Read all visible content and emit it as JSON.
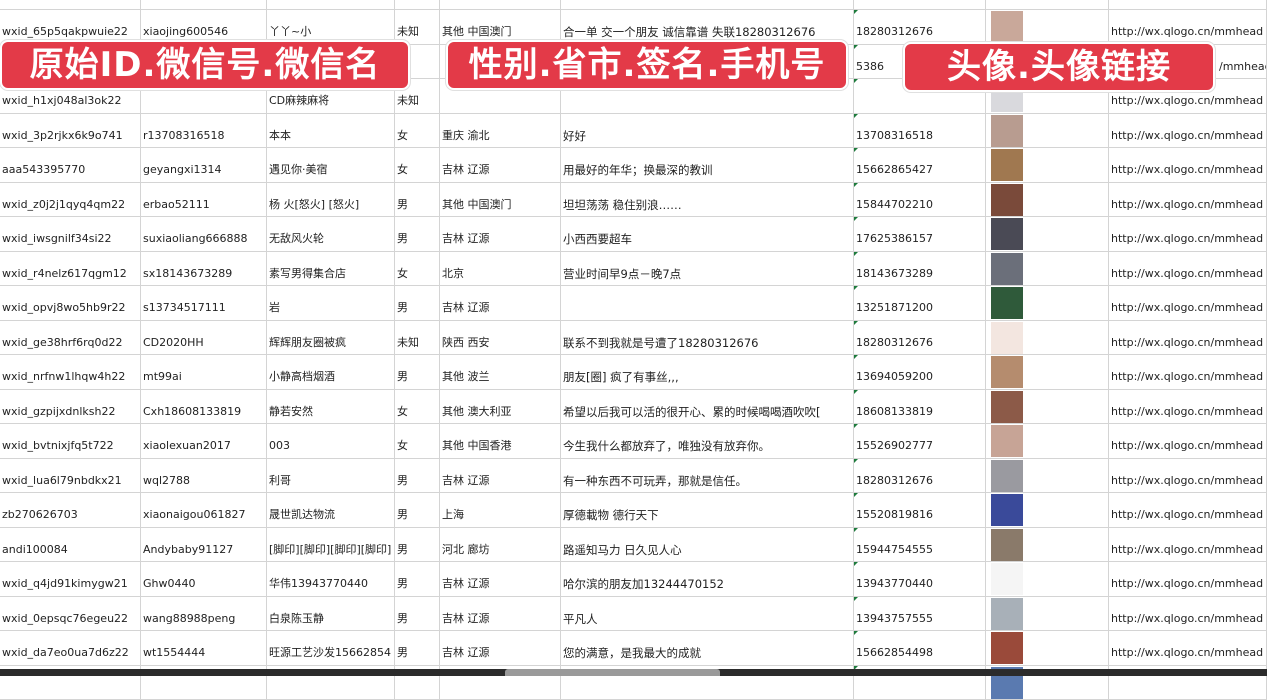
{
  "overlays": {
    "label_1": "原始ID.微信号.微信名",
    "label_2": "性别.省市.签名.手机号",
    "label_3": "头像.头像链接"
  },
  "colors": {
    "overlay": "#e33a48",
    "grid": "#d4d4d4",
    "comment_marker": "#1d7b3c"
  },
  "rows": [
    {
      "id": "wxid_65p5qakpwuie22",
      "wechat": "xiaojing600546",
      "name": "丫丫~小",
      "gender": "未知",
      "region": "其他 中国澳门",
      "signature": "合一单 交一个朋友 诚信靠谱 失联18280312676",
      "phone": "18280312676",
      "avatar_color": "#c9a89a",
      "url": "http://wx.qlogo.cn/mmhead"
    },
    {
      "id": "",
      "wechat": "",
      "name": "",
      "gender": "",
      "region": "",
      "signature": "",
      "phone": "5386",
      "avatar_color": "#8a93b8",
      "url": "/mmhead"
    },
    {
      "id": "wxid_h1xj048al3ok22",
      "wechat": "",
      "name": "CD麻辣麻将",
      "gender": "未知",
      "region": "",
      "signature": "",
      "phone": "",
      "avatar_color": "#d9d9dd",
      "url": "http://wx.qlogo.cn/mmhead"
    },
    {
      "id": "wxid_3p2rjkx6k9o741",
      "wechat": "r13708316518",
      "name": "本本",
      "gender": "女",
      "region": "重庆 渝北",
      "signature": "好好",
      "phone": "13708316518",
      "avatar_color": "#b89c90",
      "url": "http://wx.qlogo.cn/mmhead"
    },
    {
      "id": "aaa543395770",
      "wechat": "geyangxi1314",
      "name": "遇见你·美宿",
      "gender": "女",
      "region": "吉林 辽源",
      "signature": "用最好的年华；换最深的教训",
      "phone": "15662865427",
      "avatar_color": "#a07850",
      "url": "http://wx.qlogo.cn/mmhead"
    },
    {
      "id": "wxid_z0j2j1qyq4qm22",
      "wechat": "erbao52111",
      "name": "杨 火[怒火] [怒火]",
      "gender": "男",
      "region": "其他 中国澳门",
      "signature": "坦坦荡荡 稳住别浪……",
      "phone": "15844702210",
      "avatar_color": "#7a4a3a",
      "url": "http://wx.qlogo.cn/mmhead"
    },
    {
      "id": "wxid_iwsgnilf34si22",
      "wechat": "suxiaoliang666888",
      "name": "无敌风火轮",
      "gender": "男",
      "region": "吉林 辽源",
      "signature": "小西西要超车",
      "phone": "17625386157",
      "avatar_color": "#4a4a55",
      "url": "http://wx.qlogo.cn/mmhead"
    },
    {
      "id": "wxid_r4nelz617qgm12",
      "wechat": "sx18143673289",
      "name": "素写男得集合店",
      "gender": "女",
      "region": "北京",
      "signature": "营业时间早9点－晚7点",
      "phone": "18143673289",
      "avatar_color": "#6b6f7a",
      "url": "http://wx.qlogo.cn/mmhead"
    },
    {
      "id": "wxid_opvj8wo5hb9r22",
      "wechat": "s13734517111",
      "name": "岩",
      "gender": "男",
      "region": "吉林 辽源",
      "signature": "",
      "phone": "13251871200",
      "avatar_color": "#2f5a3a",
      "url": "http://wx.qlogo.cn/mmhead"
    },
    {
      "id": "wxid_ge38hrf6rq0d22",
      "wechat": "CD2020HH",
      "name": "辉辉朋友圈被疯",
      "gender": "未知",
      "region": "陕西 西安",
      "signature": "联系不到我就是号遭了18280312676",
      "phone": "18280312676",
      "avatar_color": "#f3e6e0",
      "url": "http://wx.qlogo.cn/mmhead"
    },
    {
      "id": "wxid_nrfnw1lhqw4h22",
      "wechat": "mt99ai",
      "name": "小静高档烟酒",
      "gender": "男",
      "region": "其他 波兰",
      "signature": "朋友[圈] 疯了有事丝,,,",
      "phone": "13694059200",
      "avatar_color": "#b58c6e",
      "url": "http://wx.qlogo.cn/mmhead"
    },
    {
      "id": "wxid_gzpijxdnlksh22",
      "wechat": "Cxh18608133819",
      "name": "静若安然",
      "gender": "女",
      "region": "其他 澳大利亚",
      "signature": "希望以后我可以活的很开心、累的时候喝喝酒吹吹[",
      "phone": "18608133819",
      "avatar_color": "#8c5a48",
      "url": "http://wx.qlogo.cn/mmhead"
    },
    {
      "id": "wxid_bvtnixjfq5t722",
      "wechat": "xiaolexuan2017",
      "name": "003",
      "gender": "女",
      "region": "其他 中国香港",
      "signature": "今生我什么都放弃了，唯独没有放弃你。",
      "phone": "15526902777",
      "avatar_color": "#c7a496",
      "url": "http://wx.qlogo.cn/mmhead"
    },
    {
      "id": "wxid_lua6l79nbdkx21",
      "wechat": "wql2788",
      "name": "利哥",
      "gender": "男",
      "region": "吉林 辽源",
      "signature": "有一种东西不可玩弄，那就是信任。",
      "phone": "18280312676",
      "avatar_color": "#9a9aa0",
      "url": "http://wx.qlogo.cn/mmhead"
    },
    {
      "id": "zb270626703",
      "wechat": "xiaonaigou061827",
      "name": "晟世凯达物流",
      "gender": "男",
      "region": "上海",
      "signature": "厚德載物 德行天下",
      "phone": "15520819816",
      "avatar_color": "#3a4a9a",
      "url": "http://wx.qlogo.cn/mmhead"
    },
    {
      "id": "andi100084",
      "wechat": "Andybaby91127",
      "name": "[脚印][脚印][脚印][脚印]",
      "gender": "男",
      "region": "河北 廊坊",
      "signature": "路遥知马力 日久见人心",
      "phone": "15944754555",
      "avatar_color": "#8a7a6a",
      "url": "http://wx.qlogo.cn/mmhead"
    },
    {
      "id": "wxid_q4jd91kimygw21",
      "wechat": "Ghw0440",
      "name": "华伟13943770440",
      "gender": "男",
      "region": "吉林 辽源",
      "signature": "哈尔滨的朋友加13244470152",
      "phone": "13943770440",
      "avatar_color": "#f5f5f5",
      "url": "http://wx.qlogo.cn/mmhead"
    },
    {
      "id": "wxid_0epsqc76egeu22",
      "wechat": "wang88988peng",
      "name": "白泉陈玉静",
      "gender": "男",
      "region": "吉林 辽源",
      "signature": "平凡人",
      "phone": "13943757555",
      "avatar_color": "#a8b0b8",
      "url": "http://wx.qlogo.cn/mmhead"
    },
    {
      "id": "wxid_da7eo0ua7d6z22",
      "wechat": "wt1554444",
      "name": "旺源工艺沙发15662854",
      "gender": "男",
      "region": "吉林 辽源",
      "signature": "您的满意，是我最大的成就",
      "phone": "15662854498",
      "avatar_color": "#9a4a3a",
      "url": "http://wx.qlogo.cn/mmhead"
    },
    {
      "id": "",
      "wechat": "",
      "name": "",
      "gender": "",
      "region": "",
      "signature": "",
      "phone": "",
      "avatar_color": "#5a7ab0",
      "url": ""
    }
  ]
}
